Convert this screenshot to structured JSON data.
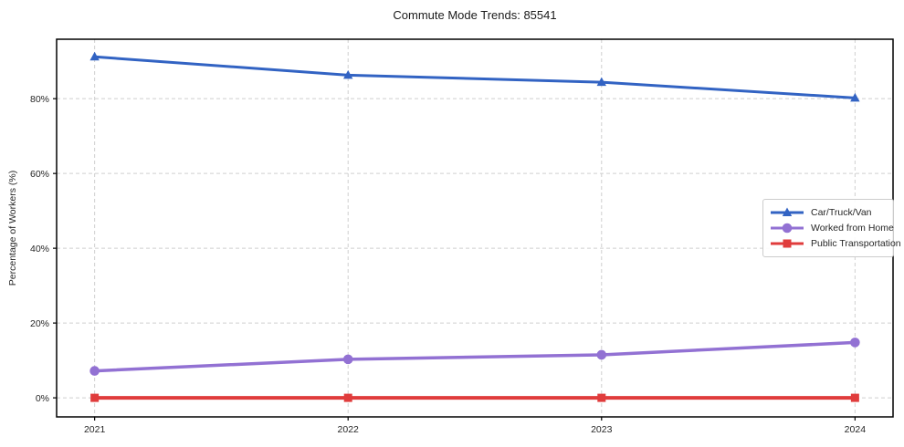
{
  "chart_data": {
    "type": "line",
    "title": "Commute Mode Trends: 85541",
    "xlabel": "",
    "ylabel": "Percentage of Workers (%)",
    "x": [
      2021,
      2022,
      2023,
      2024
    ],
    "x_tick_labels": [
      "2021",
      "2022",
      "2023",
      "2024"
    ],
    "y_ticks": [
      0,
      20,
      40,
      60,
      80
    ],
    "y_tick_labels": [
      "0%",
      "20%",
      "40%",
      "60%",
      "80%"
    ],
    "xlim": [
      2020.85,
      2024.15
    ],
    "ylim": [
      -5.1,
      95.9
    ],
    "grid": {
      "visible": true,
      "style": "dashed",
      "color": "#cfcfcf"
    },
    "legend": {
      "position": "middle-right",
      "border_color": "#cccccc",
      "background": "#ffffff"
    },
    "axis_color": "#000000",
    "tick_label_color": "#262626",
    "series": [
      {
        "name": "Car/Truck/Van",
        "color": "#3263c3",
        "marker": "triangle-up",
        "line_width": 3,
        "values": [
          91.2,
          86.3,
          84.4,
          80.2
        ]
      },
      {
        "name": "Worked from Home",
        "color": "#9271d3",
        "marker": "circle",
        "line_width": 3.5,
        "values": [
          7.2,
          10.3,
          11.5,
          14.8
        ]
      },
      {
        "name": "Public Transportation",
        "color": "#e03c3c",
        "marker": "square",
        "line_width": 4,
        "values": [
          0,
          0,
          0,
          0
        ]
      }
    ]
  }
}
